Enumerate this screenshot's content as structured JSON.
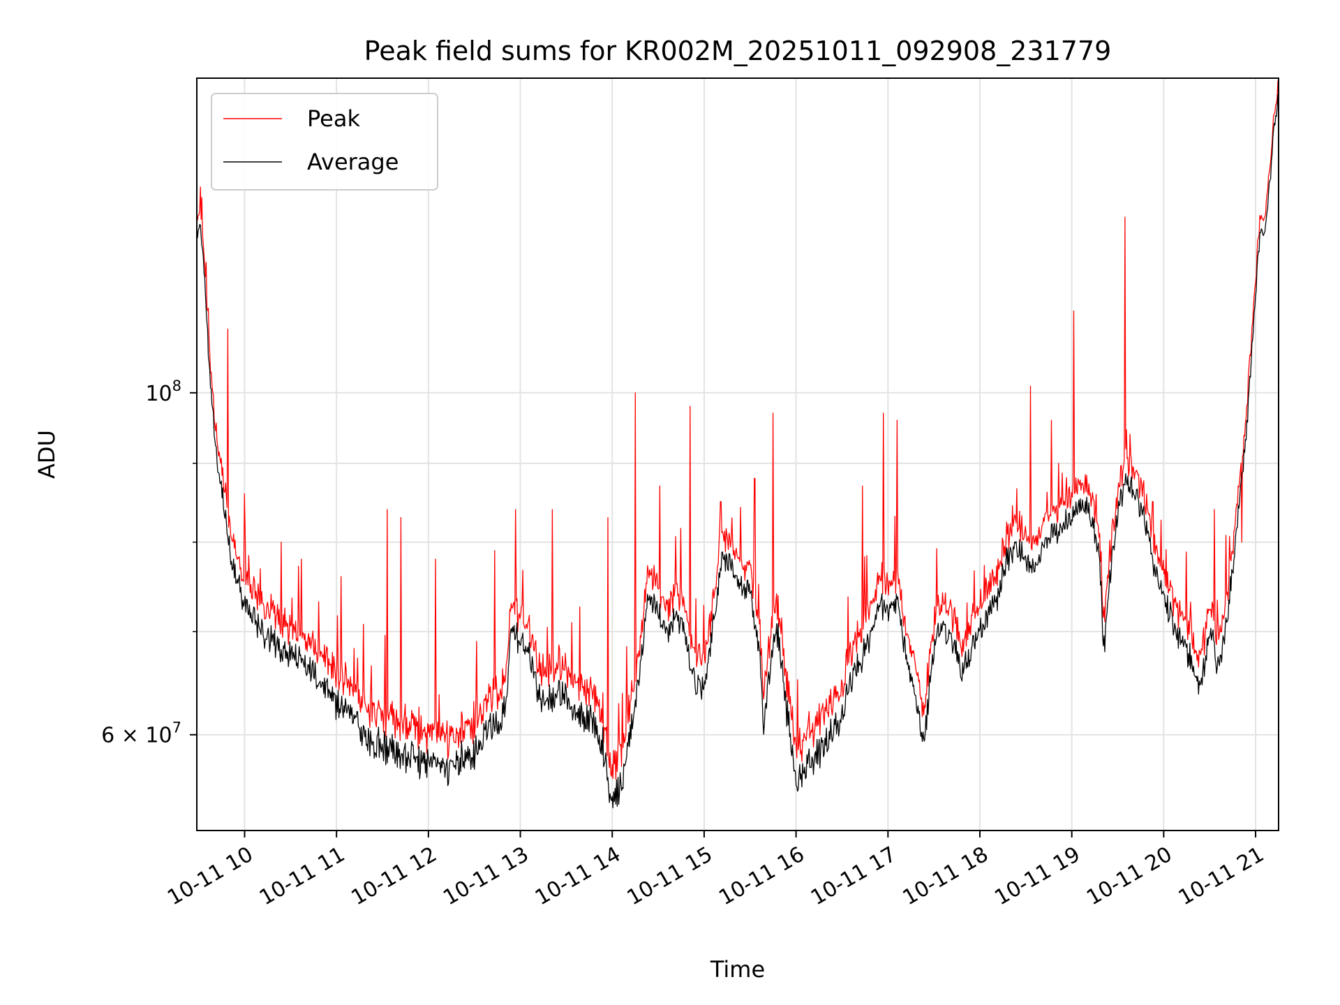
{
  "chart_data": {
    "type": "line",
    "title": "Peak field sums for KR002M_20251011_092908_231779",
    "xlabel": "Time",
    "ylabel": "ADU",
    "yscale": "log",
    "ylim": [
      52000000,
      160000000
    ],
    "xlim_hours": [
      9.48,
      21.25
    ],
    "x_ticks": [
      {
        "hour": 10,
        "label": "10-11 10"
      },
      {
        "hour": 11,
        "label": "10-11 11"
      },
      {
        "hour": 12,
        "label": "10-11 12"
      },
      {
        "hour": 13,
        "label": "10-11 13"
      },
      {
        "hour": 14,
        "label": "10-11 14"
      },
      {
        "hour": 15,
        "label": "10-11 15"
      },
      {
        "hour": 16,
        "label": "10-11 16"
      },
      {
        "hour": 17,
        "label": "10-11 17"
      },
      {
        "hour": 18,
        "label": "10-11 18"
      },
      {
        "hour": 19,
        "label": "10-11 19"
      },
      {
        "hour": 20,
        "label": "10-11 20"
      },
      {
        "hour": 21,
        "label": "10-11 21"
      }
    ],
    "y_major_ticks": [
      {
        "value": 60000000,
        "base": "6 × 10",
        "exp": "7"
      },
      {
        "value": 100000000,
        "base": "10",
        "exp": "8"
      }
    ],
    "y_minor_ticks": [
      70000000,
      80000000,
      90000000
    ],
    "grid": true,
    "legend_position": "top-left",
    "series": [
      {
        "name": "Peak",
        "color": "#ff0000",
        "points": [
          [
            9.48,
            128
          ],
          [
            9.52,
            130
          ],
          [
            9.56,
            122
          ],
          [
            9.62,
            105
          ],
          [
            9.7,
            92
          ],
          [
            9.78,
            86
          ],
          [
            9.86,
            80
          ],
          [
            9.94,
            77
          ],
          [
            10.0,
            75
          ],
          [
            10.1,
            73
          ],
          [
            10.2,
            72
          ],
          [
            10.3,
            71
          ],
          [
            10.4,
            70
          ],
          [
            10.5,
            70
          ],
          [
            10.6,
            69
          ],
          [
            10.7,
            68
          ],
          [
            10.8,
            67
          ],
          [
            10.9,
            66
          ],
          [
            11.0,
            65
          ],
          [
            11.1,
            64.5
          ],
          [
            11.2,
            63.5
          ],
          [
            11.3,
            62
          ],
          [
            11.4,
            61
          ],
          [
            11.5,
            61
          ],
          [
            11.6,
            60.5
          ],
          [
            11.7,
            60
          ],
          [
            11.8,
            60
          ],
          [
            11.9,
            59.5
          ],
          [
            12.0,
            60
          ],
          [
            12.1,
            59.5
          ],
          [
            12.2,
            59
          ],
          [
            12.3,
            59.5
          ],
          [
            12.4,
            60
          ],
          [
            12.5,
            60
          ],
          [
            12.6,
            62
          ],
          [
            12.7,
            63
          ],
          [
            12.8,
            63
          ],
          [
            12.85,
            65
          ],
          [
            12.9,
            72
          ],
          [
            13.0,
            71
          ],
          [
            13.1,
            70
          ],
          [
            13.2,
            66
          ],
          [
            13.3,
            65
          ],
          [
            13.4,
            66
          ],
          [
            13.5,
            65
          ],
          [
            13.6,
            64
          ],
          [
            13.7,
            63.5
          ],
          [
            13.8,
            63
          ],
          [
            13.9,
            61
          ],
          [
            14.0,
            56
          ],
          [
            14.05,
            57
          ],
          [
            14.1,
            58
          ],
          [
            14.2,
            62
          ],
          [
            14.3,
            68
          ],
          [
            14.4,
            76
          ],
          [
            14.5,
            74
          ],
          [
            14.6,
            72
          ],
          [
            14.7,
            74
          ],
          [
            14.8,
            71
          ],
          [
            14.9,
            67
          ],
          [
            15.0,
            66
          ],
          [
            15.1,
            73
          ],
          [
            15.2,
            80
          ],
          [
            15.3,
            79
          ],
          [
            15.4,
            77
          ],
          [
            15.5,
            76
          ],
          [
            15.6,
            70
          ],
          [
            15.65,
            62
          ],
          [
            15.7,
            68
          ],
          [
            15.8,
            72
          ],
          [
            15.9,
            64
          ],
          [
            16.0,
            58
          ],
          [
            16.1,
            59
          ],
          [
            16.2,
            60
          ],
          [
            16.3,
            61
          ],
          [
            16.4,
            62
          ],
          [
            16.5,
            64
          ],
          [
            16.6,
            67
          ],
          [
            16.7,
            69
          ],
          [
            16.8,
            71
          ],
          [
            16.9,
            75
          ],
          [
            17.0,
            74
          ],
          [
            17.1,
            75
          ],
          [
            17.2,
            70
          ],
          [
            17.3,
            65
          ],
          [
            17.4,
            62
          ],
          [
            17.5,
            70
          ],
          [
            17.6,
            73
          ],
          [
            17.7,
            71
          ],
          [
            17.8,
            68
          ],
          [
            17.9,
            70
          ],
          [
            18.0,
            72
          ],
          [
            18.1,
            74
          ],
          [
            18.2,
            76
          ],
          [
            18.3,
            80
          ],
          [
            18.4,
            81
          ],
          [
            18.5,
            80
          ],
          [
            18.6,
            79
          ],
          [
            18.7,
            82
          ],
          [
            18.8,
            83
          ],
          [
            18.9,
            84
          ],
          [
            19.0,
            85
          ],
          [
            19.1,
            87
          ],
          [
            19.2,
            86
          ],
          [
            19.3,
            80
          ],
          [
            19.35,
            70
          ],
          [
            19.4,
            76
          ],
          [
            19.5,
            86
          ],
          [
            19.6,
            90
          ],
          [
            19.7,
            88
          ],
          [
            19.8,
            84
          ],
          [
            19.9,
            79
          ],
          [
            20.0,
            76
          ],
          [
            20.1,
            73
          ],
          [
            20.2,
            71
          ],
          [
            20.3,
            69
          ],
          [
            20.4,
            66
          ],
          [
            20.5,
            72
          ],
          [
            20.6,
            68
          ],
          [
            20.7,
            74
          ],
          [
            20.8,
            84
          ],
          [
            20.9,
            96
          ],
          [
            21.0,
            118
          ],
          [
            21.05,
            130
          ],
          [
            21.1,
            128
          ],
          [
            21.15,
            138
          ],
          [
            21.2,
            150
          ],
          [
            21.25,
            158
          ]
        ],
        "spikes": [
          [
            9.82,
            110
          ],
          [
            10.0,
            86
          ],
          [
            10.4,
            80
          ],
          [
            10.62,
            78
          ],
          [
            11.05,
            76
          ],
          [
            11.55,
            84
          ],
          [
            11.7,
            83
          ],
          [
            12.08,
            78
          ],
          [
            12.72,
            79
          ],
          [
            12.95,
            84
          ],
          [
            13.35,
            84
          ],
          [
            13.95,
            83
          ],
          [
            14.25,
            100
          ],
          [
            14.52,
            87
          ],
          [
            14.85,
            98
          ],
          [
            15.18,
            85
          ],
          [
            15.55,
            88
          ],
          [
            15.75,
            97
          ],
          [
            16.72,
            87
          ],
          [
            16.95,
            97
          ],
          [
            17.1,
            96
          ],
          [
            18.55,
            101
          ],
          [
            18.78,
            96
          ],
          [
            19.02,
            113
          ],
          [
            19.58,
            130
          ],
          [
            19.88,
            85
          ],
          [
            20.55,
            84
          ],
          [
            20.85,
            80
          ]
        ]
      },
      {
        "name": "Average",
        "color": "#000000",
        "points": [
          [
            9.48,
            126
          ],
          [
            9.52,
            128
          ],
          [
            9.56,
            120
          ],
          [
            9.62,
            103
          ],
          [
            9.7,
            90
          ],
          [
            9.78,
            84
          ],
          [
            9.86,
            78
          ],
          [
            9.94,
            75
          ],
          [
            10.0,
            73
          ],
          [
            10.1,
            71
          ],
          [
            10.2,
            70
          ],
          [
            10.3,
            69
          ],
          [
            10.4,
            68
          ],
          [
            10.5,
            68
          ],
          [
            10.6,
            67
          ],
          [
            10.7,
            66
          ],
          [
            10.8,
            65
          ],
          [
            10.9,
            64
          ],
          [
            11.0,
            63
          ],
          [
            11.1,
            62.5
          ],
          [
            11.2,
            61.5
          ],
          [
            11.3,
            60
          ],
          [
            11.4,
            59
          ],
          [
            11.5,
            59
          ],
          [
            11.6,
            58.5
          ],
          [
            11.7,
            58
          ],
          [
            11.8,
            58
          ],
          [
            11.9,
            57.5
          ],
          [
            12.0,
            58
          ],
          [
            12.1,
            57.5
          ],
          [
            12.2,
            57
          ],
          [
            12.3,
            57.5
          ],
          [
            12.4,
            58
          ],
          [
            12.5,
            58
          ],
          [
            12.6,
            60
          ],
          [
            12.7,
            61
          ],
          [
            12.8,
            61
          ],
          [
            12.85,
            63
          ],
          [
            12.9,
            70
          ],
          [
            13.0,
            69
          ],
          [
            13.1,
            68
          ],
          [
            13.2,
            64
          ],
          [
            13.3,
            63
          ],
          [
            13.4,
            64
          ],
          [
            13.5,
            63
          ],
          [
            13.6,
            62
          ],
          [
            13.7,
            61.5
          ],
          [
            13.8,
            61
          ],
          [
            13.9,
            59
          ],
          [
            14.0,
            54
          ],
          [
            14.05,
            55
          ],
          [
            14.1,
            56
          ],
          [
            14.2,
            60
          ],
          [
            14.3,
            66
          ],
          [
            14.4,
            74
          ],
          [
            14.5,
            72
          ],
          [
            14.6,
            70
          ],
          [
            14.7,
            72
          ],
          [
            14.8,
            69
          ],
          [
            14.9,
            65
          ],
          [
            15.0,
            64
          ],
          [
            15.1,
            71
          ],
          [
            15.2,
            78
          ],
          [
            15.3,
            77
          ],
          [
            15.4,
            75
          ],
          [
            15.5,
            74
          ],
          [
            15.6,
            68
          ],
          [
            15.65,
            60
          ],
          [
            15.7,
            66
          ],
          [
            15.8,
            70
          ],
          [
            15.9,
            62
          ],
          [
            16.0,
            56
          ],
          [
            16.1,
            57
          ],
          [
            16.2,
            58
          ],
          [
            16.3,
            59
          ],
          [
            16.4,
            60
          ],
          [
            16.5,
            62
          ],
          [
            16.6,
            65
          ],
          [
            16.7,
            67
          ],
          [
            16.8,
            69
          ],
          [
            16.9,
            73
          ],
          [
            17.0,
            72
          ],
          [
            17.1,
            73
          ],
          [
            17.2,
            68
          ],
          [
            17.3,
            63
          ],
          [
            17.4,
            60
          ],
          [
            17.5,
            68
          ],
          [
            17.6,
            71
          ],
          [
            17.7,
            69
          ],
          [
            17.8,
            66
          ],
          [
            17.9,
            68
          ],
          [
            18.0,
            70
          ],
          [
            18.1,
            72
          ],
          [
            18.2,
            74
          ],
          [
            18.3,
            78
          ],
          [
            18.4,
            79
          ],
          [
            18.5,
            78
          ],
          [
            18.6,
            77
          ],
          [
            18.7,
            80
          ],
          [
            18.8,
            81
          ],
          [
            18.9,
            82
          ],
          [
            19.0,
            83
          ],
          [
            19.1,
            85
          ],
          [
            19.2,
            84
          ],
          [
            19.3,
            78
          ],
          [
            19.35,
            68
          ],
          [
            19.4,
            74
          ],
          [
            19.5,
            84
          ],
          [
            19.6,
            88
          ],
          [
            19.7,
            86
          ],
          [
            19.8,
            82
          ],
          [
            19.9,
            77
          ],
          [
            20.0,
            74
          ],
          [
            20.1,
            71
          ],
          [
            20.2,
            69
          ],
          [
            20.3,
            67
          ],
          [
            20.4,
            64
          ],
          [
            20.5,
            70
          ],
          [
            20.6,
            66
          ],
          [
            20.7,
            72
          ],
          [
            20.8,
            82
          ],
          [
            20.9,
            94
          ],
          [
            21.0,
            116
          ],
          [
            21.05,
            128
          ],
          [
            21.1,
            126
          ],
          [
            21.15,
            136
          ],
          [
            21.2,
            148
          ],
          [
            21.25,
            156
          ]
        ]
      }
    ],
    "value_unit_note": "point values in units of 10^6 ADU"
  }
}
